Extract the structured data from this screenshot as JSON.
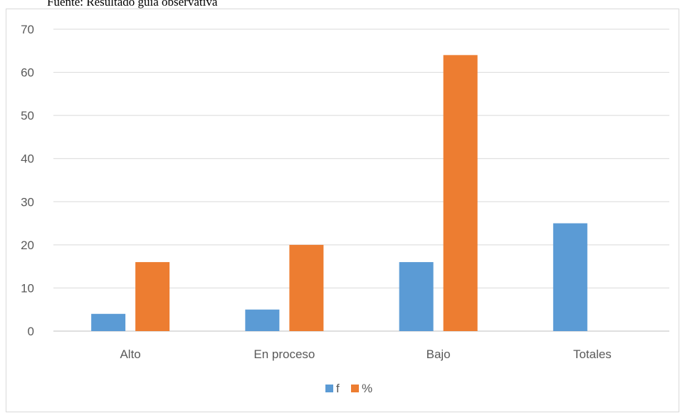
{
  "source_note": "Fuente: Resultado guía observativa",
  "chart_data": {
    "type": "bar",
    "categories": [
      "Alto",
      "En proceso",
      "Bajo",
      "Totales"
    ],
    "series": [
      {
        "name": "f",
        "values": [
          4,
          5,
          16,
          25
        ],
        "color": "#5b9bd5"
      },
      {
        "name": "%",
        "values": [
          16,
          20,
          64,
          null
        ],
        "color": "#ed7d31"
      }
    ],
    "ylim": [
      0,
      70
    ],
    "yticks": [
      0,
      10,
      20,
      30,
      40,
      50,
      60,
      70
    ],
    "grid": true,
    "legend_position": "bottom",
    "title": "",
    "xlabel": "",
    "ylabel": ""
  }
}
